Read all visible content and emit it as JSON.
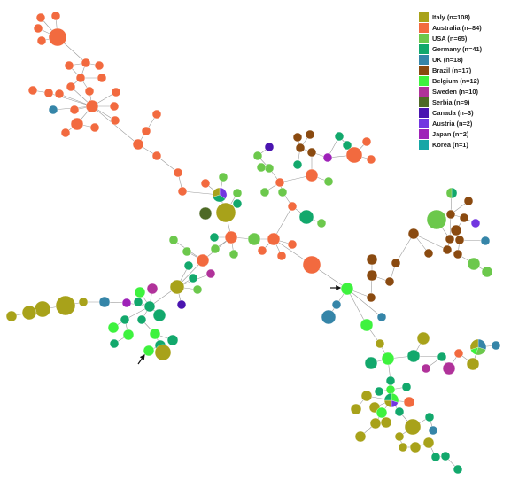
{
  "colors": {
    "Italy": "#a8a21a",
    "Australia": "#f26a3f",
    "USA": "#6cc84c",
    "Germany": "#12a86c",
    "UK": "#3585a8",
    "Brazil": "#8a4a10",
    "Belgium": "#3ef23e",
    "Sweden": "#b0329a",
    "Serbia": "#4e6a26",
    "Canada": "#4a14b0",
    "Austria": "#7236e0",
    "Japan": "#9e22b8",
    "Korea": "#16a6a6"
  },
  "legend": [
    {
      "country": "Italy",
      "label": "Italy (n=108)"
    },
    {
      "country": "Australia",
      "label": "Australia (n=84)"
    },
    {
      "country": "USA",
      "label": "USA (n=65)"
    },
    {
      "country": "Germany",
      "label": "Germany (n=41)"
    },
    {
      "country": "UK",
      "label": "UK (n=18)"
    },
    {
      "country": "Brazil",
      "label": "Brazil (n=17)"
    },
    {
      "country": "Belgium",
      "label": "Belgium (n=12)"
    },
    {
      "country": "Sweden",
      "label": "Sweden (n=10)"
    },
    {
      "country": "Serbia",
      "label": "Serbia (n=9)"
    },
    {
      "country": "Canada",
      "label": "Canada (n=3)"
    },
    {
      "country": "Austria",
      "label": "Austria (n=2)"
    },
    {
      "country": "Japan",
      "label": "Japan (n=2)"
    },
    {
      "country": "Korea",
      "label": "Korea (n=1)"
    }
  ]
}
